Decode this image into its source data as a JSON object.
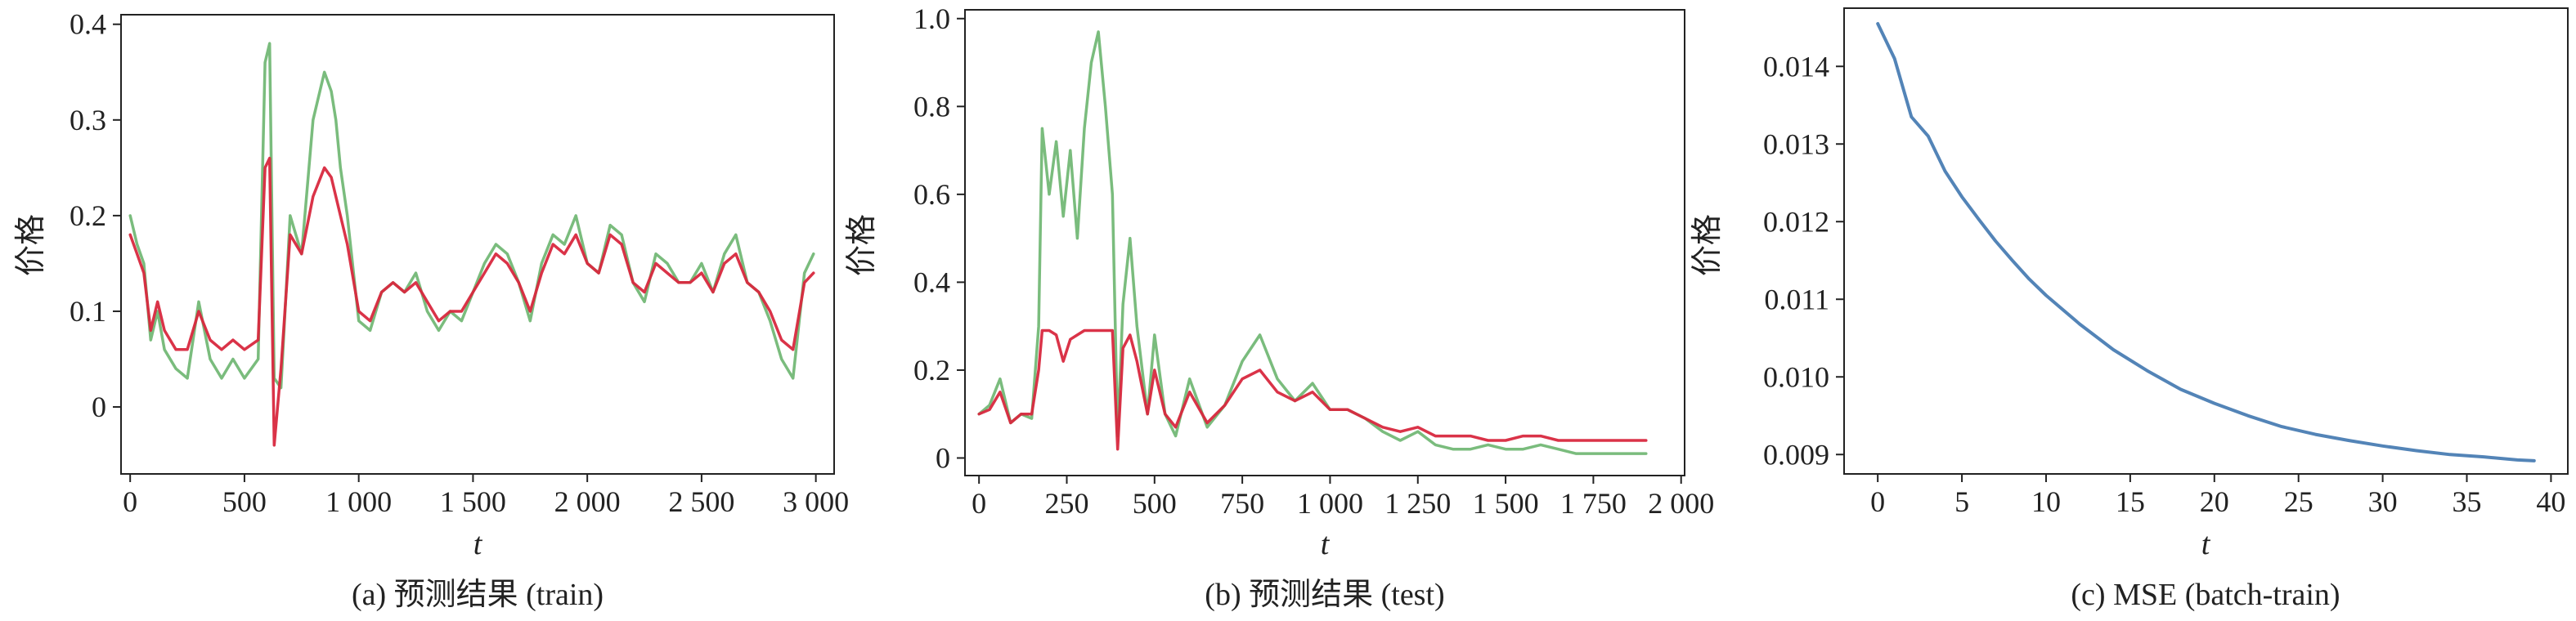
{
  "chart_data": [
    {
      "id": "a",
      "type": "line",
      "caption": "(a) 预测结果 (train)",
      "xlabel": "t",
      "ylabel": "价格",
      "xlim": [
        -40,
        3080
      ],
      "ylim": [
        -0.07,
        0.41
      ],
      "xticks": [
        0,
        500,
        1000,
        1500,
        2000,
        2500,
        3000
      ],
      "xtick_labels": [
        "0",
        "500",
        "1 000",
        "1 500",
        "2 000",
        "2 500",
        "3 000"
      ],
      "yticks": [
        0,
        0.1,
        0.2,
        0.3,
        0.4
      ],
      "ytick_labels": [
        "0",
        "0.1",
        "0.2",
        "0.3",
        "0.4"
      ],
      "series": [
        {
          "color": "#6cb56f",
          "x": [
            0,
            30,
            60,
            90,
            120,
            150,
            200,
            250,
            300,
            350,
            400,
            450,
            500,
            560,
            590,
            610,
            630,
            660,
            700,
            750,
            800,
            850,
            880,
            900,
            920,
            950,
            1000,
            1050,
            1100,
            1150,
            1200,
            1250,
            1300,
            1350,
            1400,
            1450,
            1500,
            1550,
            1600,
            1650,
            1700,
            1750,
            1800,
            1850,
            1900,
            1950,
            2000,
            2050,
            2100,
            2150,
            2200,
            2250,
            2300,
            2350,
            2400,
            2450,
            2500,
            2550,
            2600,
            2650,
            2700,
            2750,
            2800,
            2850,
            2900,
            2950,
            2990
          ],
          "y": [
            0.2,
            0.17,
            0.15,
            0.07,
            0.1,
            0.06,
            0.04,
            0.03,
            0.11,
            0.05,
            0.03,
            0.05,
            0.03,
            0.05,
            0.36,
            0.38,
            0.03,
            0.02,
            0.2,
            0.16,
            0.3,
            0.35,
            0.33,
            0.3,
            0.25,
            0.2,
            0.09,
            0.08,
            0.12,
            0.13,
            0.12,
            0.14,
            0.1,
            0.08,
            0.1,
            0.09,
            0.12,
            0.15,
            0.17,
            0.16,
            0.13,
            0.09,
            0.15,
            0.18,
            0.17,
            0.2,
            0.15,
            0.14,
            0.19,
            0.18,
            0.13,
            0.11,
            0.16,
            0.15,
            0.13,
            0.13,
            0.15,
            0.12,
            0.16,
            0.18,
            0.13,
            0.12,
            0.09,
            0.05,
            0.03,
            0.14,
            0.16
          ]
        },
        {
          "color": "#d8283e",
          "x": [
            0,
            30,
            60,
            90,
            120,
            150,
            200,
            250,
            300,
            350,
            400,
            450,
            500,
            560,
            590,
            610,
            630,
            660,
            700,
            750,
            800,
            850,
            880,
            900,
            920,
            950,
            1000,
            1050,
            1100,
            1150,
            1200,
            1250,
            1300,
            1350,
            1400,
            1450,
            1500,
            1550,
            1600,
            1650,
            1700,
            1750,
            1800,
            1850,
            1900,
            1950,
            2000,
            2050,
            2100,
            2150,
            2200,
            2250,
            2300,
            2350,
            2400,
            2450,
            2500,
            2550,
            2600,
            2650,
            2700,
            2750,
            2800,
            2850,
            2900,
            2950,
            2990
          ],
          "y": [
            0.18,
            0.16,
            0.14,
            0.08,
            0.11,
            0.08,
            0.06,
            0.06,
            0.1,
            0.07,
            0.06,
            0.07,
            0.06,
            0.07,
            0.25,
            0.26,
            -0.04,
            0.04,
            0.18,
            0.16,
            0.22,
            0.25,
            0.24,
            0.22,
            0.2,
            0.17,
            0.1,
            0.09,
            0.12,
            0.13,
            0.12,
            0.13,
            0.11,
            0.09,
            0.1,
            0.1,
            0.12,
            0.14,
            0.16,
            0.15,
            0.13,
            0.1,
            0.14,
            0.17,
            0.16,
            0.18,
            0.15,
            0.14,
            0.18,
            0.17,
            0.13,
            0.12,
            0.15,
            0.14,
            0.13,
            0.13,
            0.14,
            0.12,
            0.15,
            0.16,
            0.13,
            0.12,
            0.1,
            0.07,
            0.06,
            0.13,
            0.14
          ]
        }
      ]
    },
    {
      "id": "b",
      "type": "line",
      "caption": "(b) 预测结果 (test)",
      "xlabel": "t",
      "ylabel": "价格",
      "xlim": [
        -40,
        2010
      ],
      "ylim": [
        -0.04,
        1.02
      ],
      "xticks": [
        0,
        250,
        500,
        750,
        1000,
        1250,
        1500,
        1750,
        2000
      ],
      "xtick_labels": [
        "0",
        "250",
        "500",
        "750",
        "1 000",
        "1 250",
        "1 500",
        "1 750",
        "2 000"
      ],
      "yticks": [
        0,
        0.2,
        0.4,
        0.6,
        0.8,
        1.0
      ],
      "ytick_labels": [
        "0",
        "0.2",
        "0.4",
        "0.6",
        "0.8",
        "1.0"
      ],
      "series": [
        {
          "color": "#6cb56f",
          "x": [
            0,
            30,
            60,
            90,
            120,
            150,
            170,
            180,
            200,
            220,
            240,
            260,
            280,
            300,
            320,
            340,
            360,
            380,
            395,
            410,
            430,
            450,
            480,
            500,
            530,
            560,
            600,
            650,
            700,
            750,
            800,
            850,
            900,
            950,
            1000,
            1050,
            1100,
            1150,
            1200,
            1250,
            1300,
            1350,
            1400,
            1450,
            1500,
            1550,
            1600,
            1650,
            1700,
            1750,
            1800,
            1850,
            1900
          ],
          "y": [
            0.1,
            0.12,
            0.18,
            0.08,
            0.1,
            0.09,
            0.3,
            0.75,
            0.6,
            0.72,
            0.55,
            0.7,
            0.5,
            0.75,
            0.9,
            0.97,
            0.8,
            0.6,
            0.05,
            0.35,
            0.5,
            0.3,
            0.1,
            0.28,
            0.1,
            0.05,
            0.18,
            0.07,
            0.12,
            0.22,
            0.28,
            0.18,
            0.13,
            0.17,
            0.11,
            0.11,
            0.09,
            0.06,
            0.04,
            0.06,
            0.03,
            0.02,
            0.02,
            0.03,
            0.02,
            0.02,
            0.03,
            0.02,
            0.01,
            0.01,
            0.01,
            0.01,
            0.01
          ]
        },
        {
          "color": "#d8283e",
          "x": [
            0,
            30,
            60,
            90,
            120,
            150,
            170,
            180,
            200,
            220,
            240,
            260,
            280,
            300,
            320,
            340,
            360,
            380,
            395,
            410,
            430,
            450,
            480,
            500,
            530,
            560,
            600,
            650,
            700,
            750,
            800,
            850,
            900,
            950,
            1000,
            1050,
            1100,
            1150,
            1200,
            1250,
            1300,
            1350,
            1400,
            1450,
            1500,
            1550,
            1600,
            1650,
            1700,
            1750,
            1800,
            1850,
            1900
          ],
          "y": [
            0.1,
            0.11,
            0.15,
            0.08,
            0.1,
            0.1,
            0.2,
            0.29,
            0.29,
            0.28,
            0.22,
            0.27,
            0.28,
            0.29,
            0.29,
            0.29,
            0.29,
            0.29,
            0.02,
            0.25,
            0.28,
            0.22,
            0.1,
            0.2,
            0.1,
            0.07,
            0.15,
            0.08,
            0.12,
            0.18,
            0.2,
            0.15,
            0.13,
            0.15,
            0.11,
            0.11,
            0.09,
            0.07,
            0.06,
            0.07,
            0.05,
            0.05,
            0.05,
            0.04,
            0.04,
            0.05,
            0.05,
            0.04,
            0.04,
            0.04,
            0.04,
            0.04,
            0.04
          ]
        }
      ]
    },
    {
      "id": "c",
      "type": "line",
      "caption": "(c) MSE (batch-train)",
      "xlabel": "t",
      "ylabel": "价格",
      "xlim": [
        -2,
        41
      ],
      "ylim": [
        0.00875,
        0.01475
      ],
      "xticks": [
        0,
        5,
        10,
        15,
        20,
        25,
        30,
        35,
        40
      ],
      "xtick_labels": [
        "0",
        "5",
        "10",
        "15",
        "20",
        "25",
        "30",
        "35",
        "40"
      ],
      "yticks": [
        0.009,
        0.01,
        0.011,
        0.012,
        0.013,
        0.014
      ],
      "ytick_labels": [
        "0.009",
        "0.010",
        "0.011",
        "0.012",
        "0.013",
        "0.014"
      ],
      "series": [
        {
          "color": "#4a7db3",
          "x": [
            0,
            1,
            2,
            3,
            4,
            5,
            6,
            7,
            8,
            9,
            10,
            12,
            14,
            16,
            18,
            20,
            22,
            24,
            26,
            28,
            30,
            32,
            34,
            36,
            38,
            39
          ],
          "y": [
            0.01455,
            0.0141,
            0.01335,
            0.0131,
            0.01265,
            0.01232,
            0.01203,
            0.01175,
            0.0115,
            0.01126,
            0.01105,
            0.01068,
            0.01035,
            0.01008,
            0.00984,
            0.00966,
            0.0095,
            0.00936,
            0.00926,
            0.00918,
            0.00911,
            0.00905,
            0.009,
            0.00897,
            0.00893,
            0.00892
          ]
        }
      ]
    }
  ]
}
